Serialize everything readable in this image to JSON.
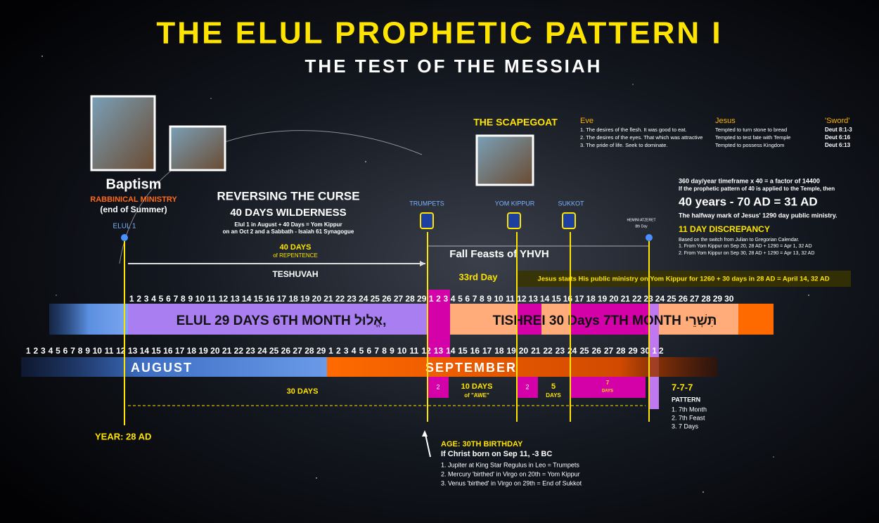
{
  "header": {
    "title": "THE ELUL PROPHETIC PATTERN I",
    "subtitle": "THE TEST OF THE MESSIAH"
  },
  "baptism": {
    "title": "Baptism",
    "ministry": "RABBINICAL MINISTRY",
    "note": "(end of Summer)",
    "elul1": "ELUL 1"
  },
  "curse": {
    "title": "REVERSING THE CURSE",
    "heading": "40 DAYS WILDERNESS",
    "line1": "Elul 1 in August + 40 Days = Yom Kippur",
    "line2": "on an Oct 2 and a Sabbath - Isaiah 61 Synagogue",
    "repentence": "40 DAYS",
    "repentence_sub": "of REPENTENCE",
    "teshuvah": "TESHUVAH"
  },
  "feasts": {
    "trumpets": "TRUMPETS",
    "yom_kippur": "YOM KIPPUR",
    "sukkot": "SUKKOT",
    "shemini": "HEMINI ATZERET",
    "eighth": "8th Day",
    "fall": "Fall Feasts of YHVH",
    "day33": "33rd Day",
    "banner": "Jesus starts His public ministry on Yom Kippur for 1260 + 30 days in 28 AD = April 14, 32 AD"
  },
  "scapegoat": "THE SCAPEGOAT",
  "comparison": {
    "headers": [
      "Eve",
      "Jesus",
      "'Sword'"
    ],
    "rows": [
      [
        "1. The desires of the flesh. It was good to eat.",
        "Tempted to turn stone to bread",
        "Deut 8:1-3"
      ],
      [
        "2. The desires of the eyes. That which was attractive",
        "Tempted to test fate with Temple",
        "Deut 6:16"
      ],
      [
        "3. The pride of life. Seek to dominate.",
        "Tempted to possess Kingdom",
        "Deut 6:13"
      ]
    ]
  },
  "notes": {
    "line1": "360 day/year timeframe x 40 = a factor of 14400",
    "line2": "If the prophetic pattern of 40 is applied to the Temple, then",
    "years": "40 years - 70 AD = 31 AD",
    "halfway": "The halfway mark of Jesus' 1290 day public ministry.",
    "discrepancy": "11 DAY DISCREPANCY",
    "switch": "Based on the switch from Julian to Gregorian Calendar.",
    "item1": "1. From Yom Kippur on Sep 20, 28 AD + 1290 = Apr 1, 32 AD",
    "item2": "2. From Yom Kippur on Sep 30, 28 AD + 1290 = Apr 13, 32 AD"
  },
  "hebrew_months": {
    "elul": "ELUL 29 DAYS 6TH MONTH אֱלוּל,",
    "tishrei": "TISHREI 30 Days 7TH MONTH תִּשְׁרֵי"
  },
  "elul_days": [
    1,
    2,
    3,
    4,
    5,
    6,
    7,
    8,
    9,
    10,
    11,
    12,
    13,
    14,
    15,
    16,
    17,
    18,
    19,
    20,
    21,
    22,
    23,
    24,
    25,
    26,
    27,
    28,
    29
  ],
  "tishrei_days": [
    1,
    2,
    3,
    4,
    5,
    6,
    7,
    8,
    9,
    10,
    11,
    12,
    13,
    14,
    15,
    16,
    17,
    18,
    19,
    20,
    21,
    22,
    23,
    24,
    25,
    26,
    27,
    28,
    29,
    30
  ],
  "august_days": [
    1,
    2,
    3,
    4,
    5,
    6,
    7,
    8,
    9,
    10,
    11,
    12,
    13,
    14,
    15,
    16,
    17,
    18,
    19,
    20,
    21,
    22,
    23,
    24,
    25,
    26,
    27,
    28,
    29
  ],
  "september_days": [
    1,
    2,
    3,
    4,
    5,
    6,
    7,
    8,
    9,
    10,
    11,
    12,
    13,
    14,
    15,
    16,
    17,
    18,
    19,
    20,
    21,
    22,
    23,
    24,
    25,
    26,
    27,
    28,
    29,
    30
  ],
  "october_days": [
    1,
    2
  ],
  "months": {
    "august": "AUGUST",
    "september": "SEPTEMBER"
  },
  "spans": {
    "thirty": "30 DAYS",
    "ten": "10 DAYS",
    "awe": "of \"AWE\"",
    "five": "5",
    "five_days": "DAYS",
    "seven": "7",
    "seven_days": "DAYS",
    "two_a": "2",
    "two_b": "2"
  },
  "pattern": {
    "title": "7-7-7",
    "label": "PATTERN",
    "items": [
      "1. 7th Month",
      "2. 7th Feast",
      "3. 7 Days"
    ]
  },
  "year": "YEAR: 28 AD",
  "birthday": {
    "title": "AGE: 30TH BIRTHDAY",
    "born": "If Christ born on Sep 11, -3 BC",
    "items": [
      "1. Jupiter at King Star Regulus in Leo = Trumpets",
      "2. Mercury 'birthed' in Virgo on 20th = Yom Kippur",
      "3. Venus 'birthed' in Virgo on 29th = End of Sukkot"
    ]
  }
}
